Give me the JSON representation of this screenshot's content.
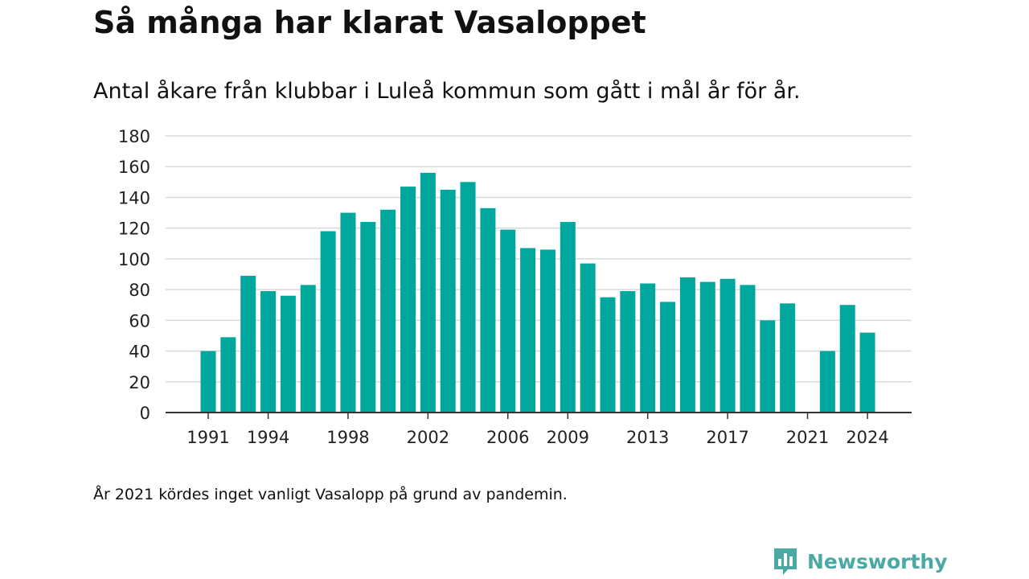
{
  "title": "Så många har klarat Vasaloppet",
  "subtitle": "Antal åkare från klubbar i Luleå kommun som gått i mål år för år.",
  "footnote": "År 2021 kördes inget vanligt Vasalopp på grund av pandemin.",
  "brand": {
    "name": "Newsworthy",
    "icon": "newsworthy-logo-icon",
    "color": "#49a9a3"
  },
  "chart_data": {
    "type": "bar",
    "bar_color": "#00a79d",
    "categories": [
      1991,
      1992,
      1993,
      1994,
      1995,
      1996,
      1997,
      1998,
      1999,
      2000,
      2001,
      2002,
      2003,
      2004,
      2005,
      2006,
      2007,
      2008,
      2009,
      2010,
      2011,
      2012,
      2013,
      2014,
      2015,
      2016,
      2017,
      2018,
      2019,
      2020,
      2021,
      2022,
      2023,
      2024
    ],
    "values": [
      40,
      49,
      89,
      79,
      76,
      83,
      118,
      130,
      124,
      132,
      147,
      156,
      145,
      150,
      133,
      119,
      107,
      106,
      124,
      97,
      75,
      79,
      84,
      72,
      88,
      85,
      87,
      83,
      60,
      71,
      null,
      40,
      70,
      52
    ],
    "x_tick_labels": [
      "1991",
      "1994",
      "1998",
      "2002",
      "2006",
      "2009",
      "2013",
      "2017",
      "2021",
      "2024"
    ],
    "y_ticks": [
      0,
      20,
      40,
      60,
      80,
      100,
      120,
      140,
      160,
      180
    ],
    "ylim": [
      0,
      180
    ],
    "grid": true,
    "xlabel": "",
    "ylabel": ""
  }
}
